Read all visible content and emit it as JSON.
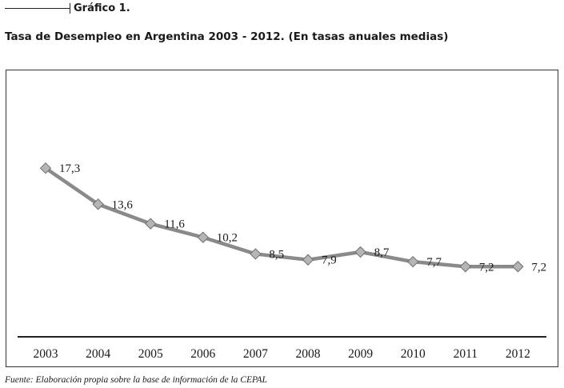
{
  "figure_label": "Gráfico 1.",
  "chart_data": {
    "type": "line",
    "title": "Tasa de Desempleo en Argentina 2003 - 2012. (En tasas anuales medias)",
    "xlabel": "",
    "ylabel": "",
    "categories": [
      "2003",
      "2004",
      "2005",
      "2006",
      "2007",
      "2008",
      "2009",
      "2010",
      "2011",
      "2012"
    ],
    "series": [
      {
        "values": [
          17.3,
          13.6,
          11.6,
          10.2,
          8.5,
          7.9,
          8.7,
          7.7,
          7.2,
          7.2
        ],
        "value_labels": [
          "17,3",
          "13,6",
          "11,6",
          "10,2",
          "8,5",
          "7,9",
          "8,7",
          "7,7",
          "7,2",
          "7,2"
        ]
      }
    ],
    "ylim": [
      0,
      27
    ],
    "grid": false,
    "legend": "none",
    "line_color": "#8a8a8a",
    "marker_color": "#b5b5b5"
  },
  "source_note": "Fuente: Elaboración propia sobre la base de información de la CEPAL"
}
